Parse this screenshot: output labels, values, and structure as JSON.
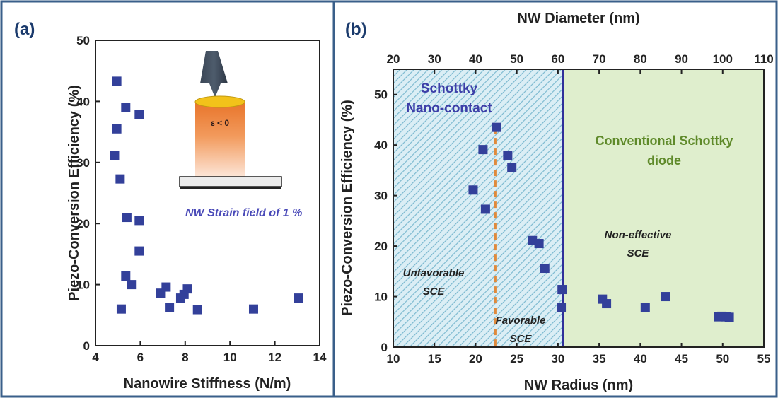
{
  "colors": {
    "border": "#3a5f8a",
    "marker": "#33409a",
    "nanocontact_text": "#3d3fa8",
    "conventional_text": "#5f8a2a",
    "dashed_line": "#e08a3c",
    "divider_line": "#2f2f9a",
    "green_region": "#dfeecd",
    "hatch_light": "#dbeef5",
    "hatch_line": "#7ab8cf"
  },
  "chart_data": [
    {
      "panel_label": "(a)",
      "type": "scatter",
      "xlabel": "Nanowire Stiffness (N/m)",
      "ylabel": "Piezo-Conversion Efficiency (%)",
      "xlim": [
        4,
        14
      ],
      "ylim": [
        0,
        50
      ],
      "xticks": [
        4,
        6,
        8,
        10,
        12,
        14
      ],
      "yticks": [
        0,
        10,
        20,
        30,
        40,
        50
      ],
      "points": [
        [
          4.95,
          43.3
        ],
        [
          4.95,
          35.5
        ],
        [
          4.85,
          31.1
        ],
        [
          5.1,
          27.3
        ],
        [
          5.35,
          39.0
        ],
        [
          5.95,
          37.8
        ],
        [
          5.4,
          21.0
        ],
        [
          5.95,
          20.5
        ],
        [
          5.95,
          15.5
        ],
        [
          5.35,
          11.4
        ],
        [
          5.6,
          10.0
        ],
        [
          5.15,
          6.0
        ],
        [
          6.9,
          8.6
        ],
        [
          7.15,
          9.6
        ],
        [
          7.3,
          6.2
        ],
        [
          7.8,
          7.8
        ],
        [
          7.95,
          8.4
        ],
        [
          8.1,
          9.3
        ],
        [
          8.55,
          5.9
        ],
        [
          11.05,
          6.0
        ],
        [
          13.05,
          7.8
        ]
      ],
      "annotations": {
        "strain_label": "NW Strain field of 1 %",
        "epsilon_label": "ε < 0"
      }
    },
    {
      "panel_label": "(b)",
      "type": "scatter",
      "xlabel": "NW Radius (nm)",
      "x2label": "NW Diameter (nm)",
      "ylabel": "Piezo-Conversion Efficiency (%)",
      "xlim": [
        10,
        55
      ],
      "x2lim": [
        20,
        110
      ],
      "ylim": [
        0,
        55
      ],
      "xticks": [
        10,
        15,
        20,
        25,
        30,
        35,
        40,
        45,
        50,
        55
      ],
      "x2ticks": [
        20,
        30,
        40,
        50,
        60,
        70,
        80,
        90,
        100,
        110
      ],
      "yticks": [
        0,
        10,
        20,
        30,
        40,
        50
      ],
      "divider_x": 30.6,
      "dashed_x": 22.4,
      "points": [
        [
          22.5,
          43.5
        ],
        [
          20.9,
          39.1
        ],
        [
          23.9,
          37.9
        ],
        [
          24.4,
          35.6
        ],
        [
          19.7,
          31.1
        ],
        [
          21.2,
          27.3
        ],
        [
          26.9,
          21.1
        ],
        [
          27.7,
          20.5
        ],
        [
          28.4,
          15.6
        ],
        [
          30.5,
          11.4
        ],
        [
          30.4,
          7.8
        ],
        [
          35.4,
          9.5
        ],
        [
          35.9,
          8.6
        ],
        [
          40.6,
          7.8
        ],
        [
          43.1,
          10.0
        ],
        [
          49.5,
          6.0
        ],
        [
          49.9,
          6.1
        ],
        [
          50.4,
          6.0
        ],
        [
          50.8,
          5.9
        ]
      ],
      "annotations": {
        "schottky_line1": "Schottky",
        "schottky_line2": "Nano-contact",
        "conventional_line1": "Conventional Schottky",
        "conventional_line2": "diode",
        "unfavorable_line1": "Unfavorable",
        "unfavorable_line2": "SCE",
        "favorable_line1": "Favorable",
        "favorable_line2": "SCE",
        "noneffective_line1": "Non-effective",
        "noneffective_line2": "SCE"
      }
    }
  ]
}
